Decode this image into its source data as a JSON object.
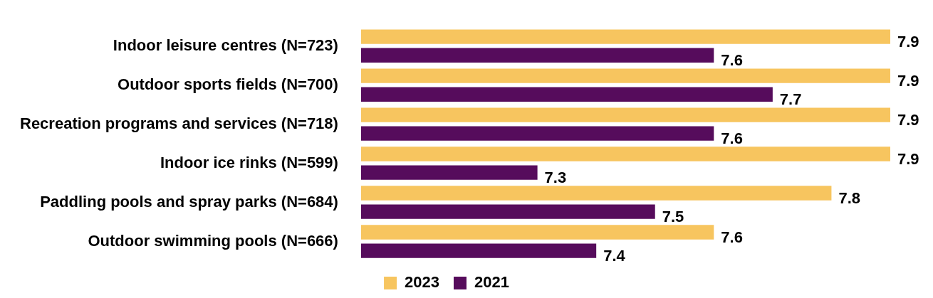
{
  "chart_data": {
    "type": "bar",
    "orientation": "horizontal",
    "categories": [
      "Indoor leisure centres (N=723)",
      "Outdoor sports fields (N=700)",
      "Recreation programs and services (N=718)",
      "Indoor ice rinks (N=599)",
      "Paddling pools and spray parks (N=684)",
      "Outdoor swimming pools (N=666)"
    ],
    "series": [
      {
        "name": "2023",
        "color": "#f7c55f",
        "values": [
          7.9,
          7.9,
          7.9,
          7.9,
          7.8,
          7.6
        ]
      },
      {
        "name": "2021",
        "color": "#560c5c",
        "values": [
          7.6,
          7.7,
          7.6,
          7.3,
          7.5,
          7.4
        ]
      }
    ],
    "xlim": [
      7,
      7.9
    ],
    "tick_labels": "y",
    "legend": "bottom",
    "data_labels": true
  }
}
